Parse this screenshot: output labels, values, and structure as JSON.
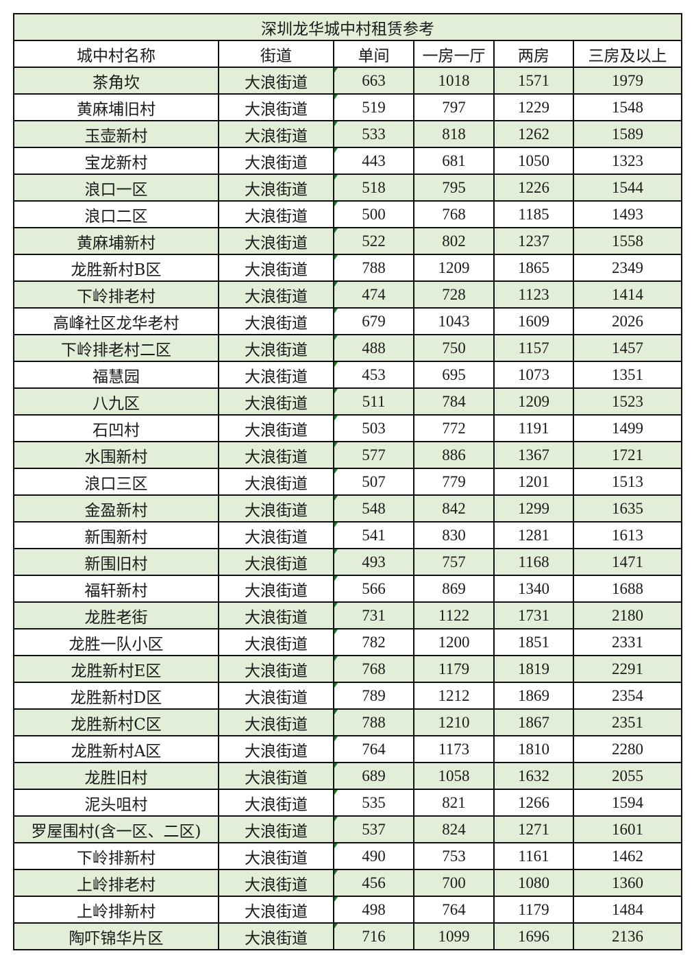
{
  "title": "深圳龙华城中村租赁参考",
  "colors": {
    "row_highlight": "#e3eed9",
    "comment_marker": "#1a7a2a"
  },
  "headers": [
    "城中村名称",
    "街道",
    "单间",
    "一房一厅",
    "两房",
    "三房及以上"
  ],
  "rows": [
    [
      "茶角坎",
      "大浪街道",
      "663",
      "1018",
      "1571",
      "1979"
    ],
    [
      "黄麻埔旧村",
      "大浪街道",
      "519",
      "797",
      "1229",
      "1548"
    ],
    [
      "玉壶新村",
      "大浪街道",
      "533",
      "818",
      "1262",
      "1589"
    ],
    [
      "宝龙新村",
      "大浪街道",
      "443",
      "681",
      "1050",
      "1323"
    ],
    [
      "浪口一区",
      "大浪街道",
      "518",
      "795",
      "1226",
      "1544"
    ],
    [
      "浪口二区",
      "大浪街道",
      "500",
      "768",
      "1185",
      "1493"
    ],
    [
      "黄麻埔新村",
      "大浪街道",
      "522",
      "802",
      "1237",
      "1558"
    ],
    [
      "龙胜新村B区",
      "大浪街道",
      "788",
      "1209",
      "1865",
      "2349"
    ],
    [
      "下岭排老村",
      "大浪街道",
      "474",
      "728",
      "1123",
      "1414"
    ],
    [
      "高峰社区龙华老村",
      "大浪街道",
      "679",
      "1043",
      "1609",
      "2026"
    ],
    [
      "下岭排老村二区",
      "大浪街道",
      "488",
      "750",
      "1157",
      "1457"
    ],
    [
      "福慧园",
      "大浪街道",
      "453",
      "695",
      "1073",
      "1351"
    ],
    [
      "八九区",
      "大浪街道",
      "511",
      "784",
      "1209",
      "1523"
    ],
    [
      "石凹村",
      "大浪街道",
      "503",
      "772",
      "1191",
      "1499"
    ],
    [
      "水围新村",
      "大浪街道",
      "577",
      "886",
      "1367",
      "1721"
    ],
    [
      "浪口三区",
      "大浪街道",
      "507",
      "779",
      "1201",
      "1513"
    ],
    [
      "金盈新村",
      "大浪街道",
      "548",
      "842",
      "1299",
      "1635"
    ],
    [
      "新围新村",
      "大浪街道",
      "541",
      "830",
      "1281",
      "1613"
    ],
    [
      "新围旧村",
      "大浪街道",
      "493",
      "757",
      "1168",
      "1471"
    ],
    [
      "福轩新村",
      "大浪街道",
      "566",
      "869",
      "1340",
      "1688"
    ],
    [
      "龙胜老街",
      "大浪街道",
      "731",
      "1122",
      "1731",
      "2180"
    ],
    [
      "龙胜一队小区",
      "大浪街道",
      "782",
      "1200",
      "1851",
      "2331"
    ],
    [
      "龙胜新村E区",
      "大浪街道",
      "768",
      "1179",
      "1819",
      "2291"
    ],
    [
      "龙胜新村D区",
      "大浪街道",
      "789",
      "1212",
      "1869",
      "2354"
    ],
    [
      "龙胜新村C区",
      "大浪街道",
      "788",
      "1210",
      "1867",
      "2351"
    ],
    [
      "龙胜新村A区",
      "大浪街道",
      "764",
      "1173",
      "1810",
      "2280"
    ],
    [
      "龙胜旧村",
      "大浪街道",
      "689",
      "1058",
      "1632",
      "2055"
    ],
    [
      "泥头咀村",
      "大浪街道",
      "535",
      "821",
      "1266",
      "1594"
    ],
    [
      "罗屋围村(含一区、二区)",
      "大浪街道",
      "537",
      "824",
      "1271",
      "1601"
    ],
    [
      "下岭排新村",
      "大浪街道",
      "490",
      "753",
      "1161",
      "1462"
    ],
    [
      "上岭排老村",
      "大浪街道",
      "456",
      "700",
      "1080",
      "1360"
    ],
    [
      "上岭排新村",
      "大浪街道",
      "498",
      "764",
      "1179",
      "1484"
    ],
    [
      "陶吓锦华片区",
      "大浪街道",
      "716",
      "1099",
      "1696",
      "2136"
    ]
  ]
}
